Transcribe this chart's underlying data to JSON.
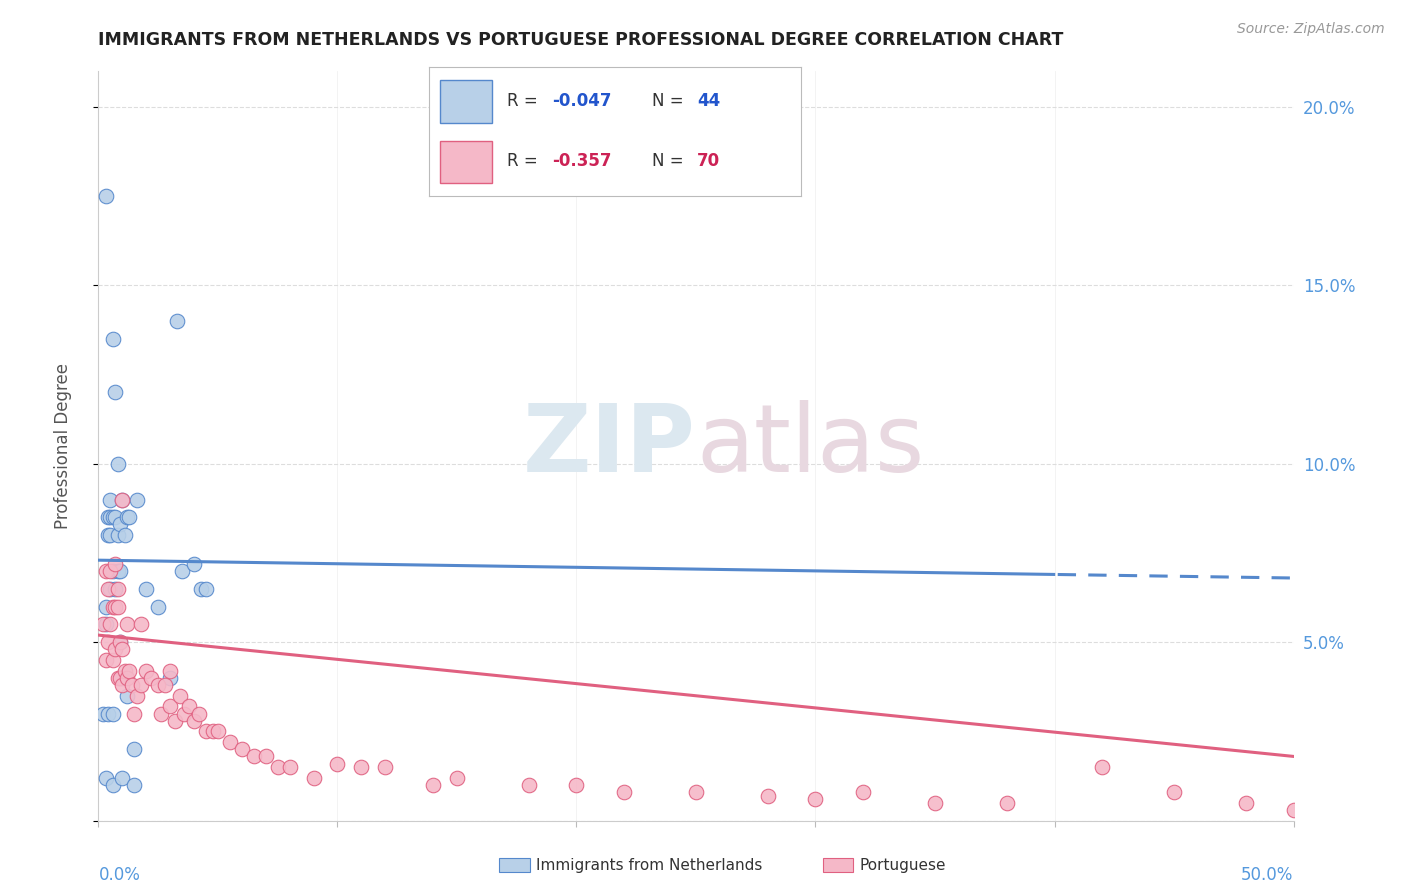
{
  "title": "IMMIGRANTS FROM NETHERLANDS VS PORTUGUESE PROFESSIONAL DEGREE CORRELATION CHART",
  "source": "Source: ZipAtlas.com",
  "ylabel": "Professional Degree",
  "xlim": [
    0.0,
    0.5
  ],
  "ylim": [
    0.0,
    0.21
  ],
  "color_netherlands": "#b8d0e8",
  "color_portuguese": "#f5b8c8",
  "color_netherlands_line": "#5588cc",
  "color_portuguese_line": "#e06080",
  "color_r_netherlands": "#2255cc",
  "color_r_portuguese": "#cc2255",
  "color_axis_right": "#5599dd",
  "netherlands_trend": [
    0.073,
    0.068
  ],
  "portuguese_trend": [
    0.052,
    0.018
  ],
  "nl_x": [
    0.002,
    0.003,
    0.003,
    0.003,
    0.004,
    0.004,
    0.004,
    0.005,
    0.005,
    0.005,
    0.005,
    0.006,
    0.006,
    0.006,
    0.006,
    0.007,
    0.007,
    0.007,
    0.008,
    0.008,
    0.008,
    0.009,
    0.009,
    0.009,
    0.01,
    0.01,
    0.011,
    0.012,
    0.012,
    0.013,
    0.015,
    0.016,
    0.02,
    0.025,
    0.03,
    0.033,
    0.035,
    0.04,
    0.043,
    0.045,
    0.003,
    0.006,
    0.01,
    0.015
  ],
  "nl_y": [
    0.03,
    0.055,
    0.06,
    0.175,
    0.03,
    0.08,
    0.085,
    0.065,
    0.08,
    0.085,
    0.09,
    0.03,
    0.07,
    0.085,
    0.135,
    0.065,
    0.085,
    0.12,
    0.07,
    0.08,
    0.1,
    0.05,
    0.07,
    0.083,
    0.04,
    0.09,
    0.08,
    0.035,
    0.085,
    0.085,
    0.02,
    0.09,
    0.065,
    0.06,
    0.04,
    0.14,
    0.07,
    0.072,
    0.065,
    0.065,
    0.012,
    0.01,
    0.012,
    0.01
  ],
  "pt_x": [
    0.002,
    0.003,
    0.003,
    0.004,
    0.004,
    0.005,
    0.005,
    0.006,
    0.006,
    0.007,
    0.007,
    0.007,
    0.008,
    0.008,
    0.008,
    0.009,
    0.009,
    0.01,
    0.01,
    0.01,
    0.011,
    0.012,
    0.012,
    0.013,
    0.014,
    0.015,
    0.016,
    0.018,
    0.018,
    0.02,
    0.022,
    0.025,
    0.026,
    0.028,
    0.03,
    0.03,
    0.032,
    0.034,
    0.036,
    0.038,
    0.04,
    0.042,
    0.045,
    0.048,
    0.05,
    0.055,
    0.06,
    0.065,
    0.07,
    0.075,
    0.08,
    0.09,
    0.1,
    0.11,
    0.12,
    0.14,
    0.15,
    0.18,
    0.2,
    0.22,
    0.25,
    0.28,
    0.3,
    0.32,
    0.35,
    0.38,
    0.42,
    0.45,
    0.48,
    0.5
  ],
  "pt_y": [
    0.055,
    0.045,
    0.07,
    0.05,
    0.065,
    0.055,
    0.07,
    0.045,
    0.06,
    0.048,
    0.06,
    0.072,
    0.04,
    0.06,
    0.065,
    0.04,
    0.05,
    0.038,
    0.048,
    0.09,
    0.042,
    0.04,
    0.055,
    0.042,
    0.038,
    0.03,
    0.035,
    0.038,
    0.055,
    0.042,
    0.04,
    0.038,
    0.03,
    0.038,
    0.032,
    0.042,
    0.028,
    0.035,
    0.03,
    0.032,
    0.028,
    0.03,
    0.025,
    0.025,
    0.025,
    0.022,
    0.02,
    0.018,
    0.018,
    0.015,
    0.015,
    0.012,
    0.016,
    0.015,
    0.015,
    0.01,
    0.012,
    0.01,
    0.01,
    0.008,
    0.008,
    0.007,
    0.006,
    0.008,
    0.005,
    0.005,
    0.015,
    0.008,
    0.005,
    0.003
  ]
}
